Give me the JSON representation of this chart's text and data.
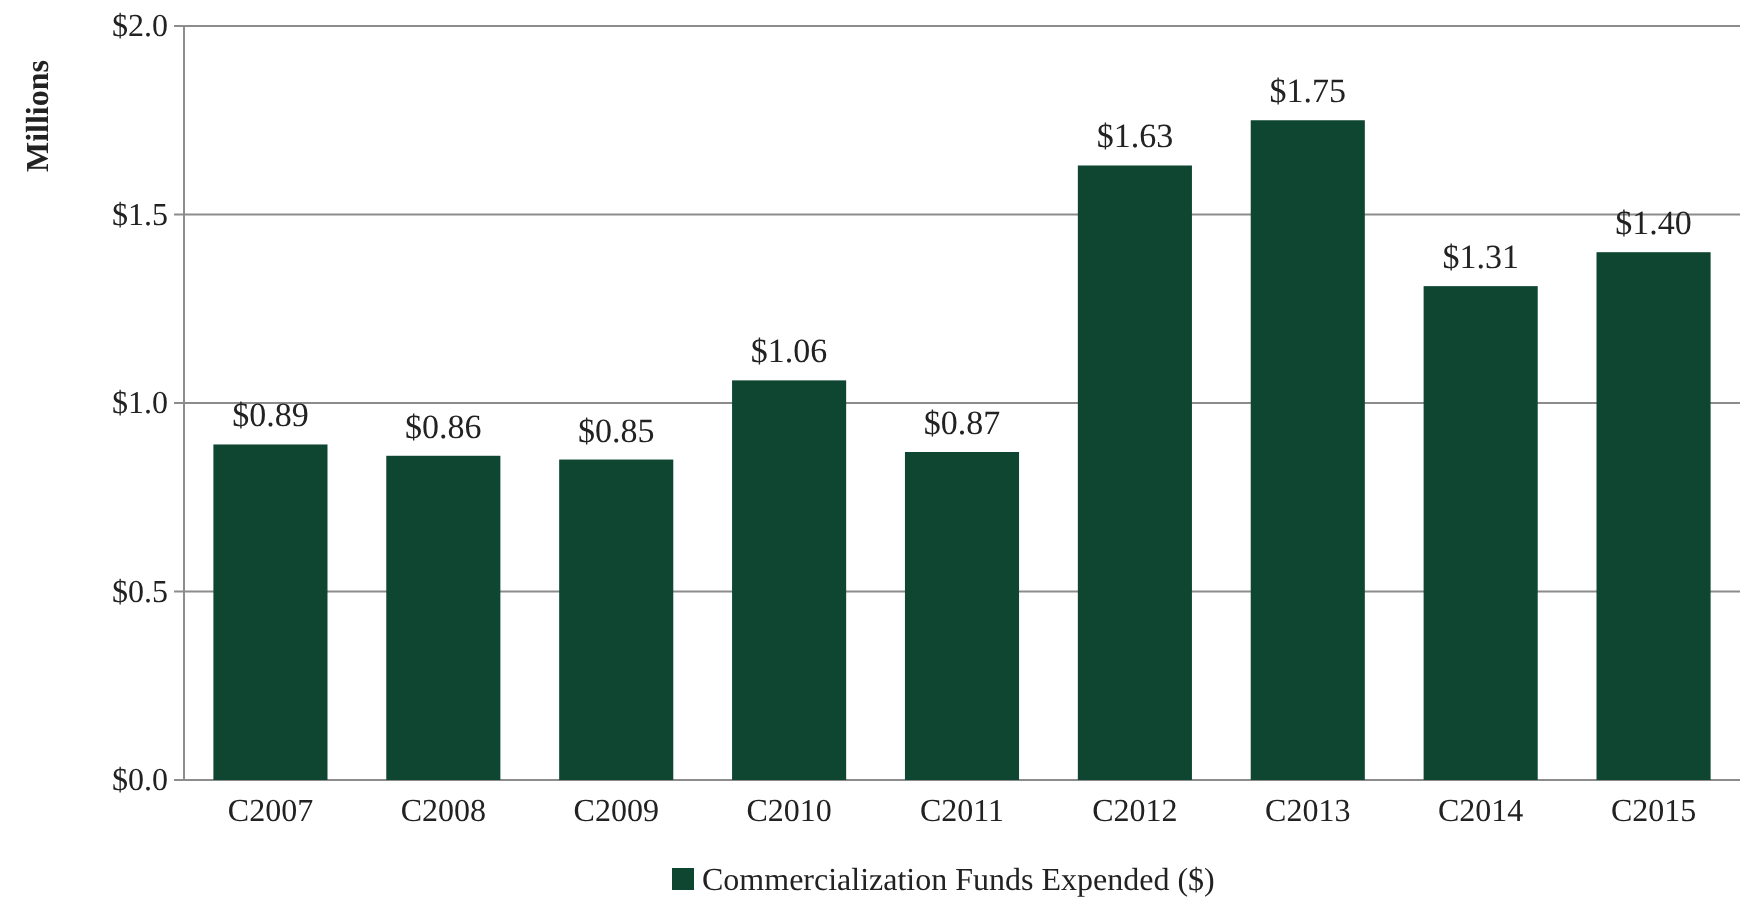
{
  "chart_data": {
    "type": "bar",
    "ylabel": "Millions",
    "categories": [
      "C2007",
      "C2008",
      "C2009",
      "C2010",
      "C2011",
      "C2012",
      "C2013",
      "C2014",
      "C2015"
    ],
    "series": [
      {
        "name": "Commercialization Funds Expended ($)",
        "color": "#0f4632",
        "values": [
          0.89,
          0.86,
          0.85,
          1.06,
          0.87,
          1.63,
          1.75,
          1.31,
          1.4
        ],
        "value_labels": [
          "$0.89",
          "$0.86",
          "$0.85",
          "$1.06",
          "$0.87",
          "$1.63",
          "$1.75",
          "$1.31",
          "$1.40"
        ]
      }
    ],
    "ylim": [
      0,
      2
    ],
    "yticks": [
      {
        "value": 0,
        "label": "$0.0"
      },
      {
        "value": 0.5,
        "label": "$0.5"
      },
      {
        "value": 1,
        "label": "$1.0"
      },
      {
        "value": 1.5,
        "label": "$1.5"
      },
      {
        "value": 2,
        "label": "$2.0"
      }
    ],
    "grid": "y",
    "legend": "bottom"
  }
}
